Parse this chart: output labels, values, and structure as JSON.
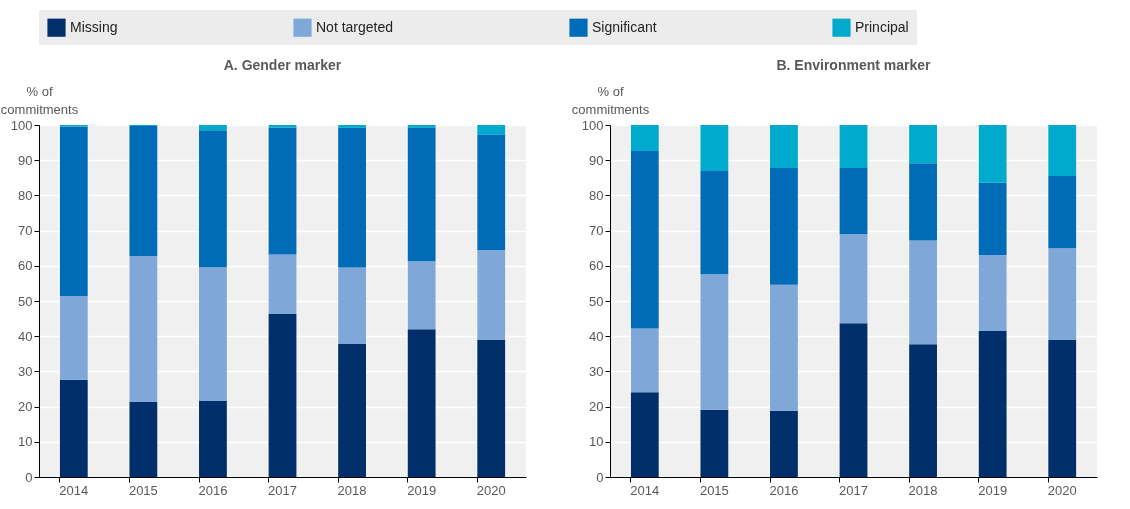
{
  "chart_data": [
    {
      "type": "bar",
      "title": "A. Gender marker",
      "ylabel": "% of commitments",
      "stacked": true,
      "grid": true,
      "legend": "top",
      "categories": [
        "2014",
        "2015",
        "2016",
        "2017",
        "2018",
        "2019",
        "2020"
      ],
      "ylim": [
        0,
        100
      ],
      "yticks": [
        0,
        10,
        20,
        30,
        40,
        50,
        60,
        70,
        80,
        90,
        100
      ],
      "series": [
        {
          "name": "Missing",
          "color": "#002f6c",
          "values": [
            27.6,
            21.3,
            21.6,
            46.3,
            37.8,
            42.0,
            38.9
          ]
        },
        {
          "name": "Not targeted",
          "color": "#7fa8d9",
          "values": [
            23.8,
            41.5,
            38.0,
            16.9,
            21.7,
            19.3,
            25.6
          ]
        },
        {
          "name": "Significant",
          "color": "#006bb6",
          "values": [
            48.2,
            36.9,
            38.9,
            36.1,
            39.7,
            37.9,
            32.7
          ]
        },
        {
          "name": "Principal",
          "color": "#00aacc",
          "values": [
            0.4,
            0.3,
            1.5,
            0.7,
            0.8,
            0.8,
            2.8
          ]
        }
      ]
    },
    {
      "type": "bar",
      "title": "B. Environment marker",
      "ylabel": "% of commitments",
      "stacked": true,
      "grid": true,
      "legend": "top",
      "categories": [
        "2014",
        "2015",
        "2016",
        "2017",
        "2018",
        "2019",
        "2020"
      ],
      "ylim": [
        0,
        100
      ],
      "yticks": [
        0,
        10,
        20,
        30,
        40,
        50,
        60,
        70,
        80,
        90,
        100
      ],
      "series": [
        {
          "name": "Missing",
          "color": "#002f6c",
          "values": [
            24.1,
            19.1,
            18.8,
            43.7,
            37.7,
            41.5,
            38.9
          ]
        },
        {
          "name": "Not targeted",
          "color": "#7fa8d9",
          "values": [
            18.1,
            38.5,
            35.8,
            25.3,
            29.5,
            21.6,
            26.1
          ]
        },
        {
          "name": "Significant",
          "color": "#006bb6",
          "values": [
            50.4,
            29.3,
            33.2,
            18.8,
            21.9,
            20.5,
            20.5
          ]
        },
        {
          "name": "Principal",
          "color": "#00aacc",
          "values": [
            7.4,
            13.1,
            12.2,
            12.2,
            10.9,
            16.4,
            14.5
          ]
        }
      ]
    }
  ]
}
